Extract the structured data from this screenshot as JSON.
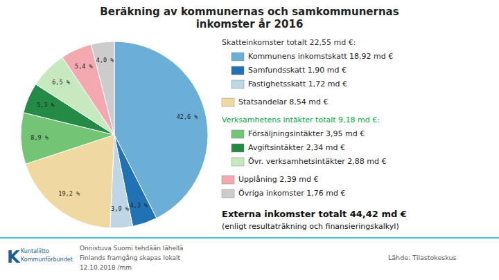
{
  "chart_data": {
    "type": "pie",
    "title": [
      "Beräkning av kommunernas och samkommunernas",
      "inkomster år 2016"
    ],
    "categories": [
      "Kommunens inkomstskatt 18,92 md €",
      "Samfundsskatt 1,90 md €",
      "Fastighetsskatt 1,72 md €",
      "Statsandelar 8,54 md €",
      "Försäljningsintäkter 3,95 md €",
      "Avgiftsintäkter 2,34 md €",
      "Övr. verksamhetsintäkter 2,88 md €",
      "Upplåning 2,39 md €",
      "Övriga inkomster 1,76 md €"
    ],
    "values": [
      42.6,
      4.3,
      3.9,
      19.2,
      8.9,
      5.3,
      6.5,
      5.4,
      4.0
    ],
    "value_labels": [
      "42,6 %",
      "4,3 %",
      "3,9 %",
      "19,2 %",
      "8,9 %",
      "5,3 %",
      "6,5 %",
      "5,4 %",
      "4,0 %"
    ],
    "colors": [
      "#6baed6",
      "#2171b5",
      "#bdd7e7",
      "#f0d9a0",
      "#74c476",
      "#238b45",
      "#c7e9c0",
      "#f4a9b0",
      "#cccccc"
    ],
    "data_labels": true,
    "legend": "right",
    "legend_headers": [
      {
        "text": "Skatteinkomster totalt 22,55 md €:",
        "color": "#333333"
      },
      {
        "text": "Verksamhetens intäkter totalt 9,18 md €:",
        "color": "#00aa44"
      }
    ],
    "footer": [
      "Externa inkomster totalt 44,42 md €",
      "(enligt resultaträkning och finansieringskalkyl)"
    ],
    "logo": [
      "K",
      "Kuntaliitto",
      "Kommunförbundet"
    ],
    "footnotes": [
      "Onnistuva Suomi tehdään lähellä",
      "Finlands framgång skapas lokalt",
      "12.10.2018 /mm",
      "Lähde: Tilastokeskus"
    ]
  }
}
